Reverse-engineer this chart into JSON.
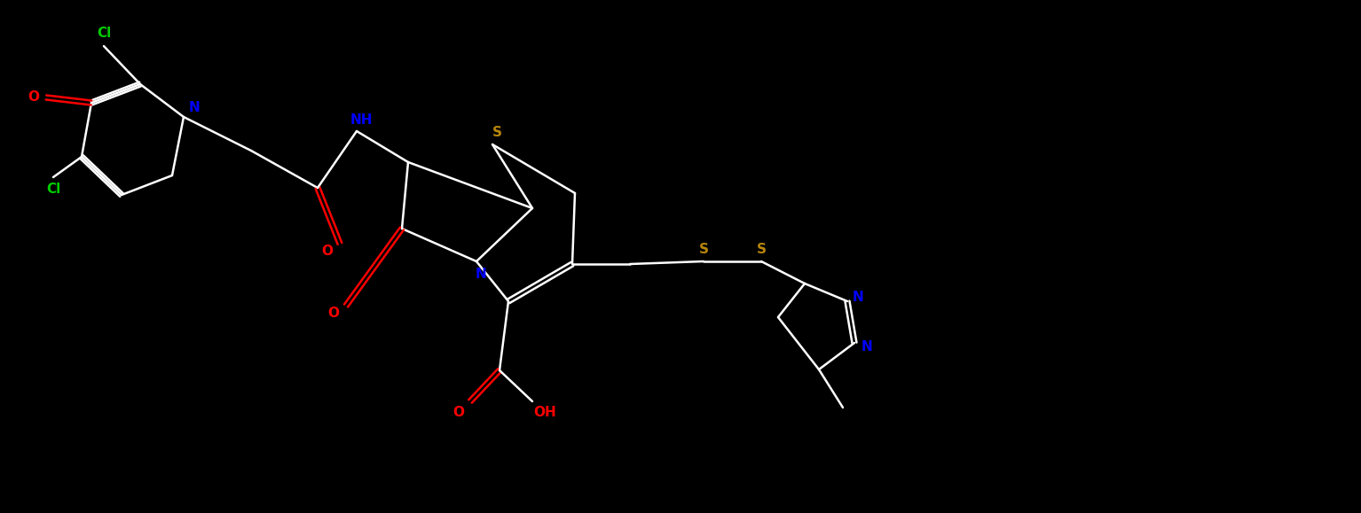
{
  "background_color": "#000000",
  "bond_color": "#ffffff",
  "atom_colors": {
    "N": "#0000ff",
    "O": "#ff0000",
    "S": "#b8860b",
    "Cl": "#00cc00",
    "H": "#ffffff",
    "C": "#ffffff"
  },
  "figsize": [
    15.34,
    5.79
  ],
  "dpi": 100
}
